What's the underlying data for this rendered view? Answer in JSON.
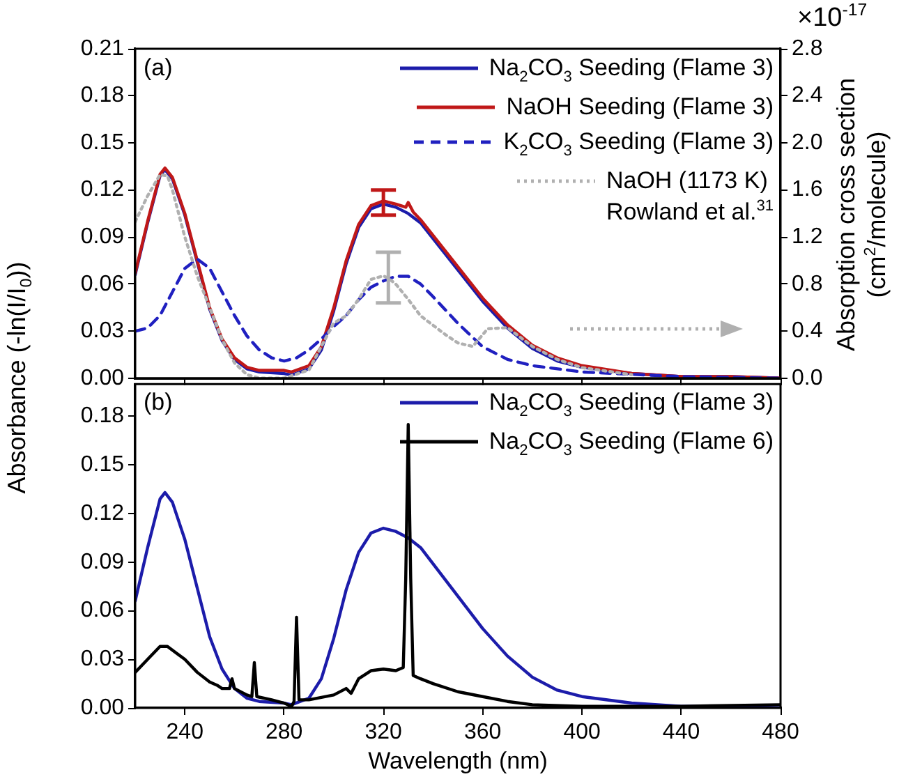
{
  "chart_data": [
    {
      "type": "line",
      "ylabel": "Absorbance (-ln(I/I$_{0}$))",
      "y2label": "Absorption cross section\n(cm$^{2}$/molecule)",
      "annotations": [
        "(a)",
        "×10$^{-17}$"
      ],
      "xlim": [
        220,
        480
      ],
      "xticks": [
        240,
        280,
        320,
        360,
        400,
        440,
        480
      ],
      "ylim": [
        0,
        0.21
      ],
      "yticks": [
        {
          "value": 0,
          "label": "0.00"
        },
        {
          "value": 0.03,
          "label": "0.03"
        },
        {
          "value": 0.06,
          "label": "0.06"
        },
        {
          "value": 0.09,
          "label": "0.09"
        },
        {
          "value": 0.12,
          "label": "0.12"
        },
        {
          "value": 0.15,
          "label": "0.15"
        },
        {
          "value": 0.18,
          "label": "0.18"
        },
        {
          "value": 0.21,
          "label": "0.21"
        }
      ],
      "y2lim": [
        0,
        2.8
      ],
      "y2ticks": [
        {
          "value": 0,
          "label": "0.0"
        },
        {
          "value": 0.4,
          "label": "0.4"
        },
        {
          "value": 0.8,
          "label": "0.8"
        },
        {
          "value": 1.2,
          "label": "1.2"
        },
        {
          "value": 1.6,
          "label": "1.6"
        },
        {
          "value": 2.0,
          "label": "2.0"
        },
        {
          "value": 2.4,
          "label": "2.4"
        },
        {
          "value": 2.8,
          "label": "2.8"
        }
      ],
      "tick_labels": "y",
      "legend": "top right",
      "marker": "none",
      "line_style": "solid",
      "series": [
        {
          "name": "Na$_{2}$CO$_{3}$ Seeding (Flame 3)",
          "color": "#1c1caa",
          "x": [
            220,
            225,
            230,
            232,
            235,
            240,
            245,
            250,
            255,
            260,
            265,
            270,
            280,
            283,
            290,
            295,
            300,
            305,
            310,
            315,
            320,
            325,
            330,
            335,
            340,
            350,
            360,
            370,
            380,
            390,
            400,
            420,
            440,
            460,
            480
          ],
          "values": [
            0.066,
            0.099,
            0.129,
            0.133,
            0.127,
            0.104,
            0.074,
            0.044,
            0.024,
            0.012,
            0.006,
            0.004,
            0.003,
            0.002,
            0.006,
            0.018,
            0.043,
            0.073,
            0.096,
            0.108,
            0.111,
            0.109,
            0.105,
            0.099,
            0.089,
            0.069,
            0.049,
            0.032,
            0.019,
            0.011,
            0.007,
            0.003,
            0.001,
            0.001,
            0.0
          ]
        },
        {
          "name": "NaOH Seeding (Flame 3)",
          "color": "#c01818",
          "x": [
            220,
            225,
            230,
            232,
            235,
            240,
            245,
            250,
            255,
            260,
            265,
            270,
            280,
            283,
            290,
            295,
            300,
            305,
            310,
            315,
            320,
            325,
            329,
            330,
            332,
            335,
            340,
            350,
            360,
            370,
            380,
            390,
            400,
            420,
            440,
            460,
            480
          ],
          "values": [
            0.067,
            0.1,
            0.13,
            0.134,
            0.128,
            0.105,
            0.075,
            0.045,
            0.025,
            0.013,
            0.007,
            0.005,
            0.005,
            0.004,
            0.008,
            0.02,
            0.045,
            0.075,
            0.098,
            0.11,
            0.113,
            0.111,
            0.109,
            0.112,
            0.106,
            0.101,
            0.091,
            0.071,
            0.051,
            0.034,
            0.021,
            0.013,
            0.008,
            0.003,
            0.001,
            0.001,
            0.0
          ],
          "errors": [
            null,
            null,
            null,
            null,
            null,
            null,
            null,
            null,
            null,
            null,
            null,
            null,
            null,
            null,
            null,
            null,
            null,
            null,
            null,
            null,
            [
              0.104,
              0.12
            ],
            null,
            null,
            null,
            null,
            null,
            null,
            null,
            null,
            null,
            null,
            null,
            null,
            null,
            null,
            null,
            null
          ]
        },
        {
          "name": "K$_{2}$CO$_{3}$ Seeding (Flame 3)",
          "color": "#2020c0",
          "line_style": "dashed",
          "x": [
            220,
            225,
            230,
            235,
            240,
            245,
            250,
            255,
            260,
            265,
            270,
            275,
            280,
            285,
            290,
            295,
            300,
            305,
            310,
            315,
            320,
            325,
            330,
            335,
            340,
            350,
            360,
            370,
            380,
            400,
            440,
            480
          ],
          "values": [
            0.03,
            0.032,
            0.04,
            0.055,
            0.07,
            0.076,
            0.07,
            0.055,
            0.04,
            0.027,
            0.018,
            0.013,
            0.011,
            0.013,
            0.018,
            0.025,
            0.033,
            0.04,
            0.05,
            0.058,
            0.062,
            0.065,
            0.065,
            0.06,
            0.052,
            0.035,
            0.02,
            0.012,
            0.008,
            0.004,
            0.001,
            0.0
          ]
        },
        {
          "name": "NaOH (1173 K)\nRowland et al.$^{31}$",
          "color": "#b0b0b0",
          "line_style": "dotted",
          "axis": "y2",
          "x": [
            220,
            225,
            230,
            233,
            235,
            240,
            245,
            250,
            255,
            260,
            265,
            270,
            280,
            290,
            295,
            300,
            305,
            310,
            315,
            320,
            322,
            325,
            330,
            335,
            340,
            345,
            350,
            356,
            362,
            370,
            380,
            390,
            400,
            420
          ],
          "values": [
            1.33,
            1.55,
            1.73,
            1.72,
            1.6,
            1.2,
            0.87,
            0.6,
            0.33,
            0.13,
            0.03,
            0.0,
            0.0,
            0.07,
            0.27,
            0.47,
            0.53,
            0.67,
            0.84,
            0.87,
            0.85,
            0.8,
            0.67,
            0.53,
            0.45,
            0.37,
            0.3,
            0.27,
            0.42,
            0.43,
            0.27,
            0.16,
            0.09,
            0.03
          ],
          "errors": [
            null,
            null,
            null,
            null,
            null,
            null,
            null,
            null,
            null,
            null,
            null,
            null,
            null,
            null,
            null,
            null,
            null,
            null,
            null,
            null,
            [
              0.64,
              1.07
            ],
            null,
            null,
            null,
            null,
            null,
            null,
            null,
            null,
            null,
            null,
            null,
            null,
            null
          ]
        }
      ]
    },
    {
      "type": "line",
      "xlabel": "Wavelength (nm)",
      "annotations": [
        "(b)"
      ],
      "xlim": [
        220,
        480
      ],
      "xticks": [
        240,
        280,
        320,
        360,
        400,
        440,
        480
      ],
      "ylim": [
        0,
        0.2
      ],
      "yticks": [
        {
          "value": 0,
          "label": "0.00"
        },
        {
          "value": 0.03,
          "label": "0.03"
        },
        {
          "value": 0.06,
          "label": "0.06"
        },
        {
          "value": 0.09,
          "label": "0.09"
        },
        {
          "value": 0.12,
          "label": "0.12"
        },
        {
          "value": 0.15,
          "label": "0.15"
        },
        {
          "value": 0.18,
          "label": "0.18"
        }
      ],
      "legend": "top right",
      "marker": "none",
      "line_style": "solid",
      "series": [
        {
          "name": "Na$_{2}$CO$_{3}$ Seeding (Flame 3)",
          "color": "#1c1caa",
          "x": [
            220,
            225,
            230,
            232,
            235,
            240,
            245,
            250,
            255,
            260,
            265,
            270,
            280,
            283,
            290,
            295,
            300,
            305,
            310,
            315,
            320,
            325,
            330,
            335,
            340,
            350,
            360,
            370,
            380,
            390,
            400,
            420,
            440,
            460,
            480
          ],
          "values": [
            0.066,
            0.099,
            0.129,
            0.133,
            0.127,
            0.104,
            0.074,
            0.044,
            0.024,
            0.012,
            0.006,
            0.004,
            0.003,
            0.002,
            0.006,
            0.018,
            0.043,
            0.073,
            0.096,
            0.108,
            0.111,
            0.109,
            0.105,
            0.099,
            0.089,
            0.069,
            0.049,
            0.032,
            0.019,
            0.011,
            0.007,
            0.003,
            0.001,
            0.001,
            0.0
          ]
        },
        {
          "name": "Na$_{2}$CO$_{3}$ Seeding (Flame 6)",
          "color": "#000000",
          "x": [
            220,
            225,
            230,
            233,
            240,
            245,
            250,
            253,
            255,
            258,
            259,
            260,
            265,
            267,
            268,
            269,
            275,
            280,
            283,
            284,
            285,
            286,
            290,
            300,
            305,
            307,
            310,
            315,
            320,
            325,
            328,
            329,
            330,
            331,
            332,
            335,
            340,
            350,
            360,
            370,
            380,
            400,
            440,
            480
          ],
          "values": [
            0.022,
            0.03,
            0.038,
            0.038,
            0.03,
            0.022,
            0.016,
            0.014,
            0.012,
            0.012,
            0.018,
            0.012,
            0.008,
            0.007,
            0.028,
            0.007,
            0.005,
            0.003,
            0.001,
            0.004,
            0.056,
            0.005,
            0.005,
            0.008,
            0.012,
            0.009,
            0.018,
            0.023,
            0.024,
            0.023,
            0.025,
            0.08,
            0.175,
            0.08,
            0.02,
            0.018,
            0.015,
            0.01,
            0.007,
            0.004,
            0.002,
            0.001,
            0.001,
            0.002
          ]
        }
      ]
    }
  ]
}
